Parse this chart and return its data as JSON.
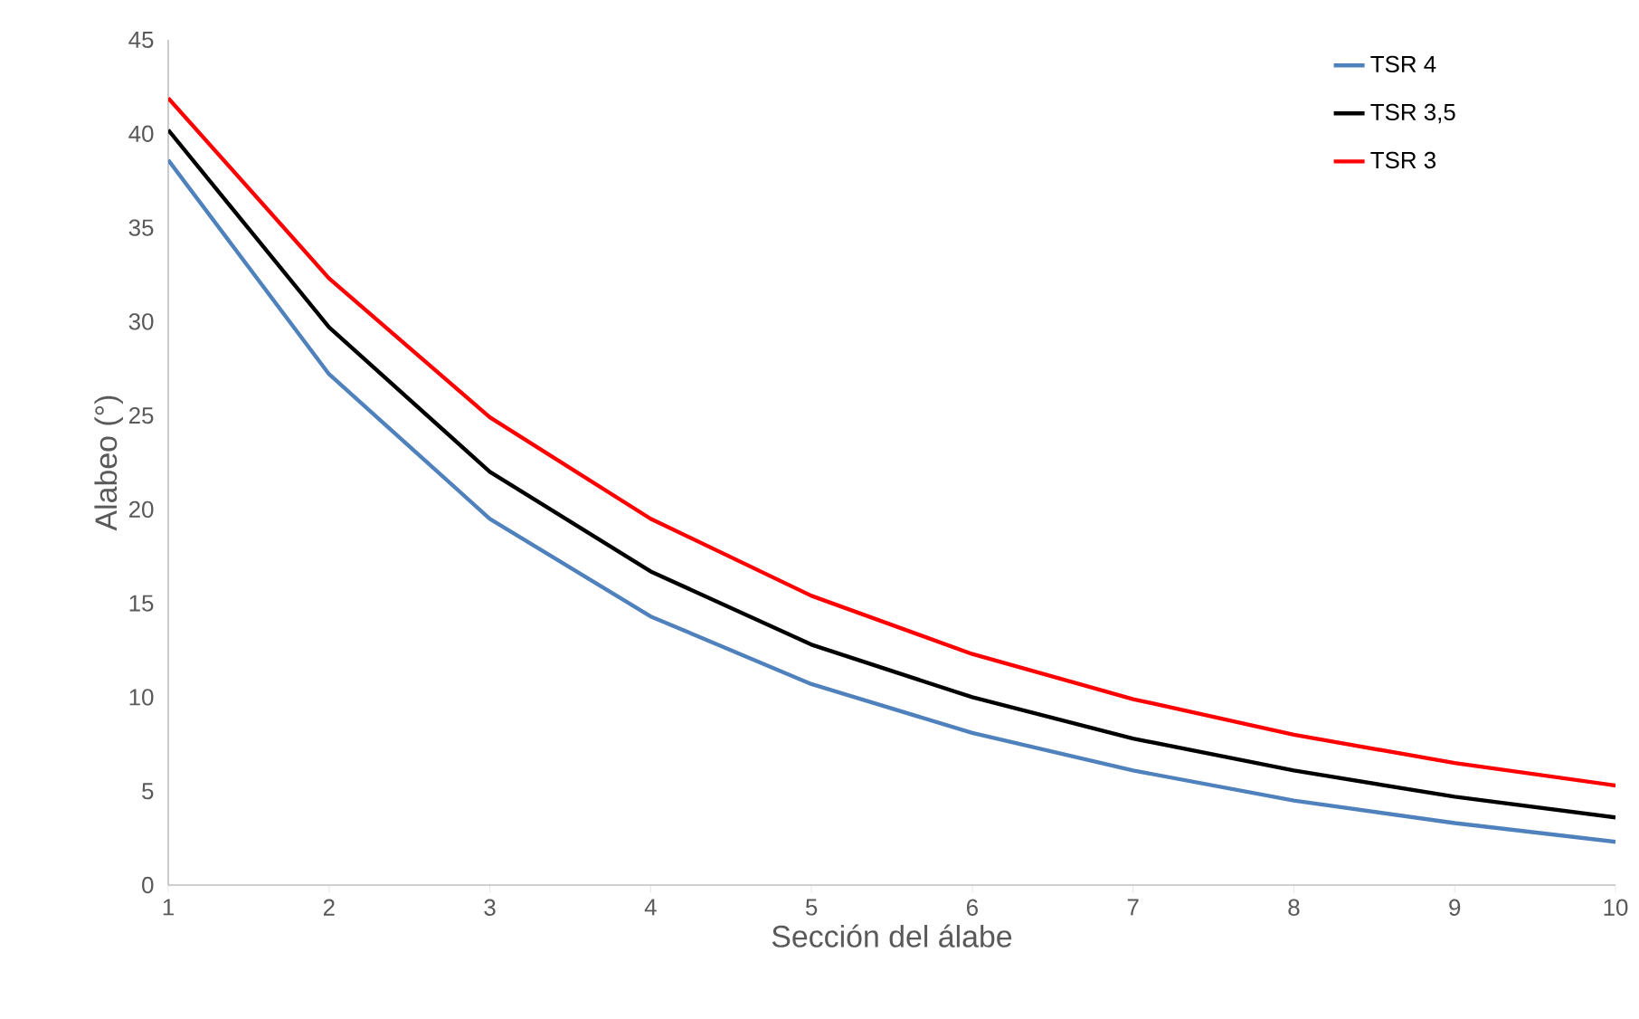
{
  "chart_data": {
    "type": "line",
    "xlabel": "Sección del álabe",
    "ylabel": "Alabeo (°)",
    "x": [
      1,
      2,
      3,
      4,
      5,
      6,
      7,
      8,
      9,
      10
    ],
    "series": [
      {
        "name": "TSR 4",
        "color": "#4f81bd",
        "values": [
          38.6,
          27.2,
          19.5,
          14.3,
          10.7,
          8.1,
          6.1,
          4.5,
          3.3,
          2.3
        ]
      },
      {
        "name": "TSR 3,5",
        "color": "#000000",
        "values": [
          40.2,
          29.7,
          22.0,
          16.7,
          12.8,
          10.0,
          7.8,
          6.1,
          4.7,
          3.6
        ]
      },
      {
        "name": "TSR 3",
        "color": "#ff0000",
        "values": [
          41.9,
          32.3,
          24.9,
          19.5,
          15.4,
          12.3,
          9.9,
          8.0,
          6.5,
          5.3
        ]
      }
    ],
    "xlim": [
      1,
      10
    ],
    "xticks": [
      1,
      2,
      3,
      4,
      5,
      6,
      7,
      8,
      9,
      10
    ],
    "ylim": [
      0,
      45
    ],
    "yticks": [
      0,
      5,
      10,
      15,
      20,
      25,
      30,
      35,
      40,
      45
    ],
    "legend": "top right",
    "grid": false,
    "marker": "none",
    "line_style": "solid"
  }
}
